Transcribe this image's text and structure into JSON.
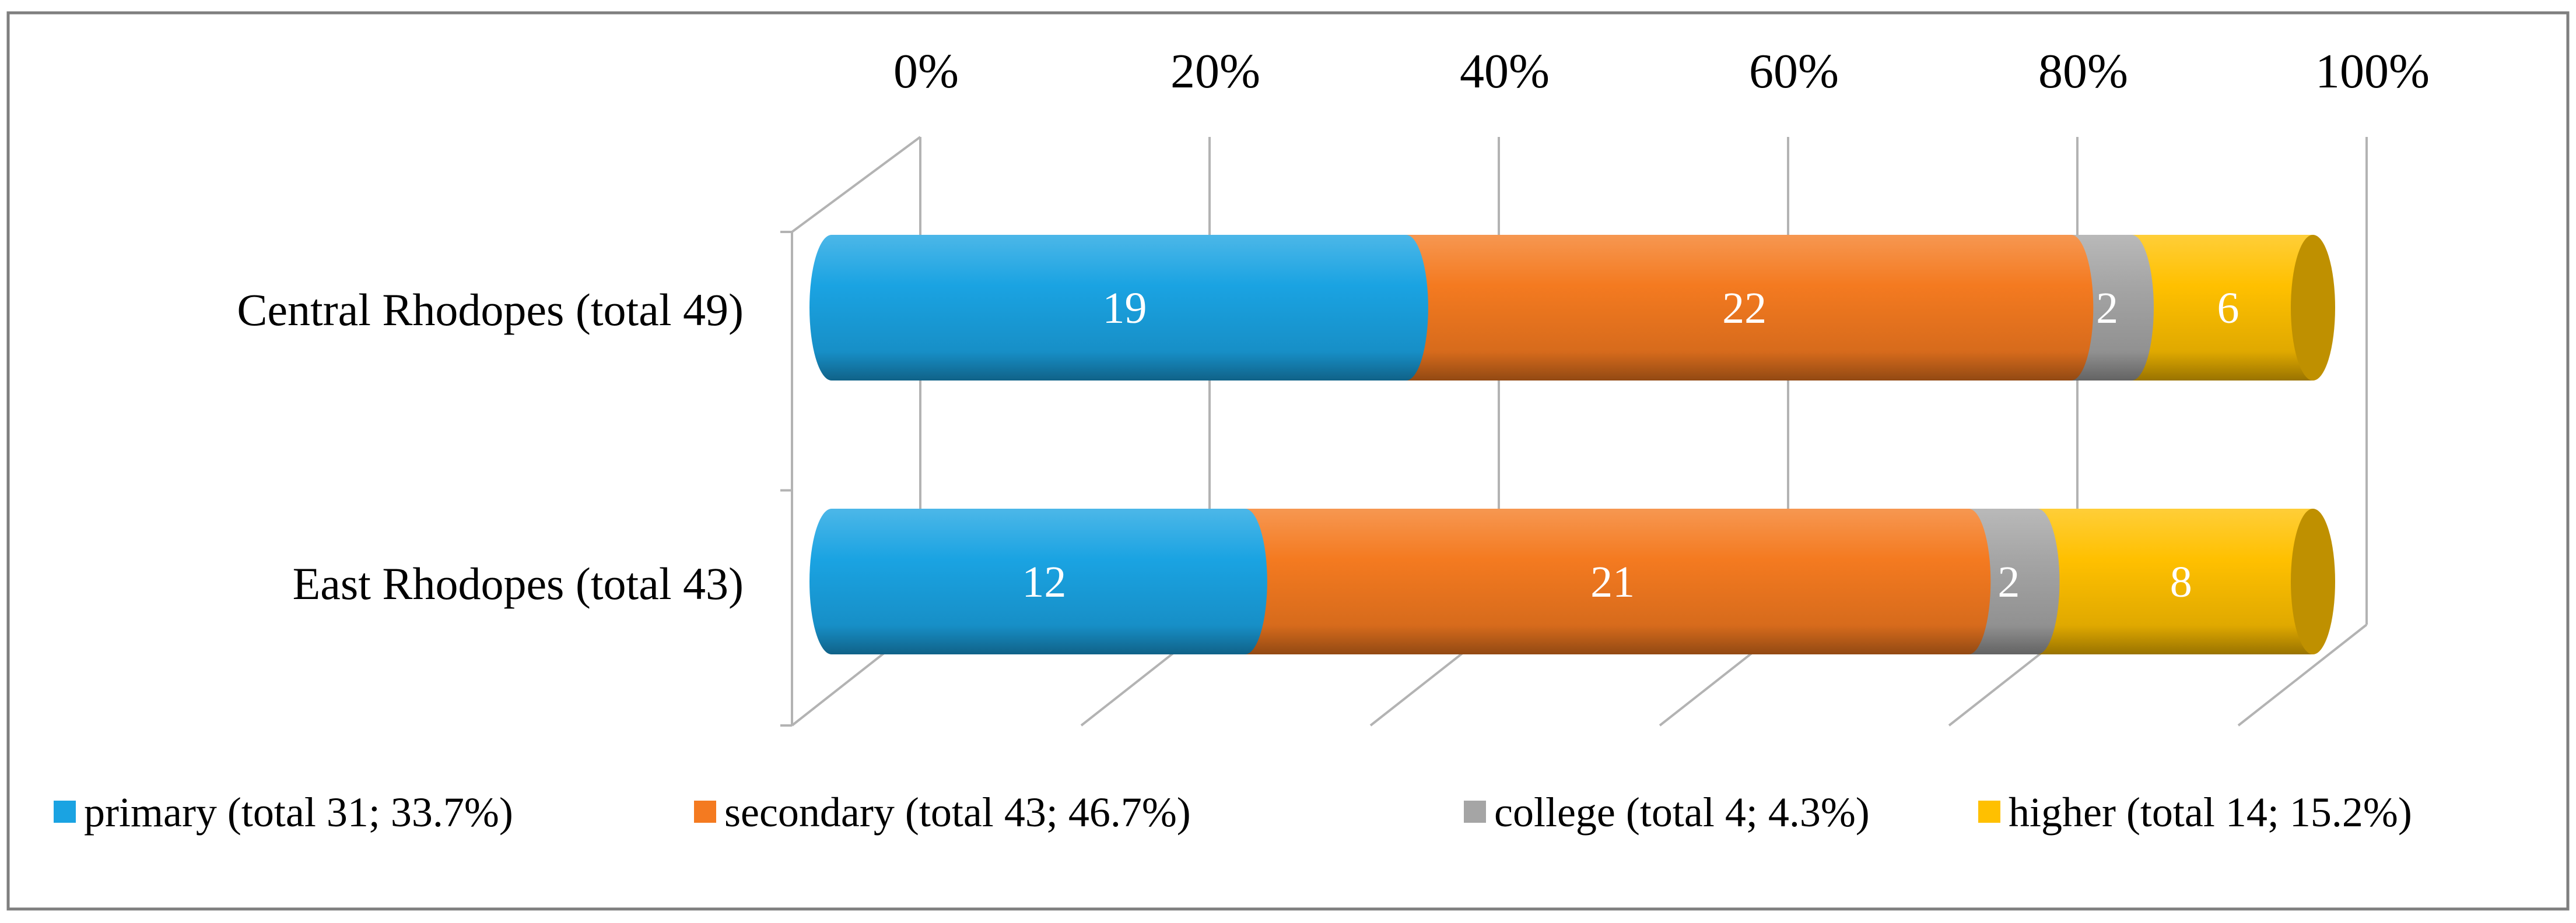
{
  "chart_data": {
    "type": "bar",
    "orientation": "horizontal",
    "stacking": "percent",
    "style": "3d-cylinder",
    "categories": [
      "Central Rhodopes (total 49)",
      "East Rhodopes (total 43)"
    ],
    "series": [
      {
        "name": "primary (total  31; 33.7%)",
        "values": [
          19,
          12
        ],
        "color": "#1aa3e2"
      },
      {
        "name": "secondary (total  43; 46.7%)",
        "values": [
          22,
          21
        ],
        "color": "#f47a20"
      },
      {
        "name": "college (total  4; 4.3%)",
        "values": [
          2,
          2
        ],
        "color": "#a5a5a5"
      },
      {
        "name": "higher (total  14; 15.2%)",
        "values": [
          6,
          8
        ],
        "color": "#ffc000"
      }
    ],
    "x_ticks": [
      "0%",
      "20%",
      "40%",
      "60%",
      "80%",
      "100%"
    ],
    "x_axis_position": "top",
    "xlim": [
      0,
      100
    ],
    "grid": true,
    "legend_position": "bottom",
    "title": "",
    "xlabel": "",
    "ylabel": ""
  },
  "colors": {
    "frame": "#7f7f7f",
    "gridline": "#b3b3b3",
    "text": "#000000",
    "data_label": "#ffffff"
  }
}
